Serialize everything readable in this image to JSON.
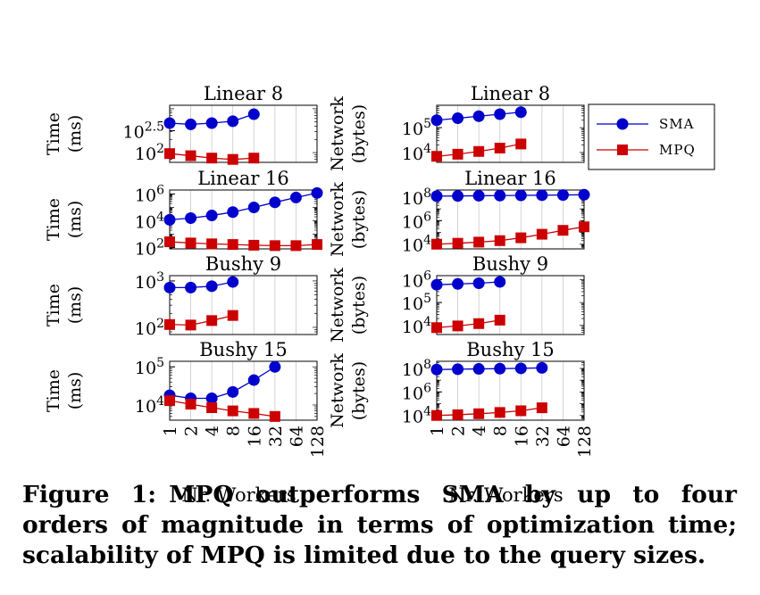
{
  "figure": {
    "caption_label": "Figure 1:",
    "caption_line1": "MPQ outperforms SMA by up to four",
    "caption_line2": "orders of magnitude in terms of optimization time;",
    "caption_line3": "scalability of MPQ is limited due to the query sizes.",
    "x_axis_label": "Nr. Workers"
  },
  "legend": {
    "entries": [
      {
        "name": "SMA",
        "color": "#0000cc",
        "marker": "circle"
      },
      {
        "name": "MPQ",
        "color": "#cc0000",
        "marker": "square"
      }
    ]
  },
  "chart_data": [
    {
      "type": "line",
      "title": "Linear 8",
      "ylabel": "Time (ms)",
      "yscale": "log",
      "ytick_labels": [
        "10^2",
        "10^2.5"
      ],
      "ylim": [
        60,
        1200
      ],
      "xlabel": "",
      "x": [
        1,
        2,
        4,
        8,
        16,
        32,
        64,
        128
      ],
      "series": [
        {
          "name": "SMA",
          "x": [
            1,
            2,
            4,
            8,
            16
          ],
          "values": [
            470,
            440,
            470,
            520,
            750
          ]
        },
        {
          "name": "MPQ",
          "x": [
            1,
            2,
            4,
            8,
            16
          ],
          "values": [
            95,
            85,
            75,
            70,
            75
          ]
        }
      ]
    },
    {
      "type": "line",
      "title": "Linear 16",
      "ylabel": "Time (ms)",
      "yscale": "log",
      "ytick_labels": [
        "10^2",
        "10^4",
        "10^6"
      ],
      "ylim": [
        80,
        2000000
      ],
      "xlabel": "",
      "x": [
        1,
        2,
        4,
        8,
        16,
        32,
        64,
        128
      ],
      "series": [
        {
          "name": "SMA",
          "x": [
            1,
            2,
            4,
            8,
            16,
            32,
            64,
            128
          ],
          "values": [
            12000,
            16000,
            25000,
            45000,
            100000,
            240000,
            550000,
            1200000
          ]
        },
        {
          "name": "MPQ",
          "x": [
            1,
            2,
            4,
            8,
            16,
            32,
            64,
            128
          ],
          "values": [
            270,
            220,
            190,
            170,
            150,
            140,
            140,
            170
          ]
        }
      ]
    },
    {
      "type": "line",
      "title": "Bushy 9",
      "ylabel": "Time (ms)",
      "yscale": "log",
      "ytick_labels": [
        "10^2",
        "10^3"
      ],
      "ylim": [
        70,
        1300
      ],
      "xlabel": "",
      "x": [
        1,
        2,
        4,
        8,
        16,
        32,
        64,
        128
      ],
      "series": [
        {
          "name": "SMA",
          "x": [
            1,
            2,
            4,
            8
          ],
          "values": [
            720,
            720,
            770,
            950
          ]
        },
        {
          "name": "MPQ",
          "x": [
            1,
            2,
            4,
            8
          ],
          "values": [
            115,
            112,
            140,
            180
          ]
        }
      ]
    },
    {
      "type": "line",
      "title": "Bushy 15",
      "ylabel": "Time (ms)",
      "yscale": "log",
      "ytick_labels": [
        "10^4",
        "10^5"
      ],
      "ylim": [
        4000,
        140000
      ],
      "xlabel": "Nr. Workers",
      "x": [
        1,
        2,
        4,
        8,
        16,
        32,
        64,
        128
      ],
      "series": [
        {
          "name": "SMA",
          "x": [
            1,
            2,
            4,
            8,
            16,
            32
          ],
          "values": [
            18000,
            15000,
            15000,
            22000,
            45000,
            100000
          ]
        },
        {
          "name": "MPQ",
          "x": [
            1,
            2,
            4,
            8,
            16,
            32
          ],
          "values": [
            13000,
            10500,
            8500,
            7000,
            6000,
            5000
          ]
        }
      ]
    },
    {
      "type": "line",
      "title": "Linear 8",
      "ylabel": "Network (bytes)",
      "yscale": "log",
      "ytick_labels": [
        "10^4",
        "10^5"
      ],
      "ylim": [
        4000,
        800000
      ],
      "xlabel": "",
      "x": [
        1,
        2,
        4,
        8,
        16,
        32,
        64,
        128
      ],
      "series": [
        {
          "name": "SMA",
          "x": [
            1,
            2,
            4,
            8,
            16
          ],
          "values": [
            200000,
            240000,
            290000,
            350000,
            420000
          ]
        },
        {
          "name": "MPQ",
          "x": [
            1,
            2,
            4,
            8,
            16
          ],
          "values": [
            7000,
            8500,
            11000,
            15000,
            22000
          ]
        }
      ]
    },
    {
      "type": "line",
      "title": "Linear 16",
      "ylabel": "Network (bytes)",
      "yscale": "log",
      "ytick_labels": [
        "10^4",
        "10^6",
        "10^8"
      ],
      "ylim": [
        4000,
        400000000
      ],
      "xlabel": "",
      "x": [
        1,
        2,
        4,
        8,
        16,
        32,
        64,
        128
      ],
      "series": [
        {
          "name": "SMA",
          "x": [
            1,
            2,
            4,
            8,
            16,
            32,
            64,
            128
          ],
          "values": [
            120000000,
            125000000,
            130000000,
            135000000,
            140000000,
            145000000,
            150000000,
            160000000
          ]
        },
        {
          "name": "MPQ",
          "x": [
            1,
            2,
            4,
            8,
            16,
            32,
            64,
            128
          ],
          "values": [
            10000,
            12000,
            15000,
            20000,
            35000,
            70000,
            150000,
            300000
          ]
        }
      ]
    },
    {
      "type": "line",
      "title": "Bushy 9",
      "ylabel": "Network (bytes)",
      "yscale": "log",
      "ytick_labels": [
        "10^4",
        "10^5",
        "10^6"
      ],
      "ylim": [
        4000,
        1500000
      ],
      "xlabel": "",
      "x": [
        1,
        2,
        4,
        8,
        16,
        32,
        64,
        128
      ],
      "series": [
        {
          "name": "SMA",
          "x": [
            1,
            2,
            4,
            8
          ],
          "values": [
            600000,
            650000,
            700000,
            800000
          ]
        },
        {
          "name": "MPQ",
          "x": [
            1,
            2,
            4,
            8
          ],
          "values": [
            8000,
            9500,
            12000,
            17000
          ]
        }
      ]
    },
    {
      "type": "line",
      "title": "Bushy 15",
      "ylabel": "Network (bytes)",
      "yscale": "log",
      "ytick_labels": [
        "10^4",
        "10^6",
        "10^8"
      ],
      "ylim": [
        4000,
        400000000
      ],
      "xlabel": "Nr. Workers",
      "x": [
        1,
        2,
        4,
        8,
        16,
        32,
        64,
        128
      ],
      "series": [
        {
          "name": "SMA",
          "x": [
            1,
            2,
            4,
            8,
            16,
            32
          ],
          "values": [
            80000000,
            85000000,
            90000000,
            95000000,
            100000000,
            110000000
          ]
        },
        {
          "name": "MPQ",
          "x": [
            1,
            2,
            4,
            8,
            16,
            32
          ],
          "values": [
            10000,
            11500,
            14000,
            18000,
            25000,
            45000
          ]
        }
      ]
    }
  ]
}
